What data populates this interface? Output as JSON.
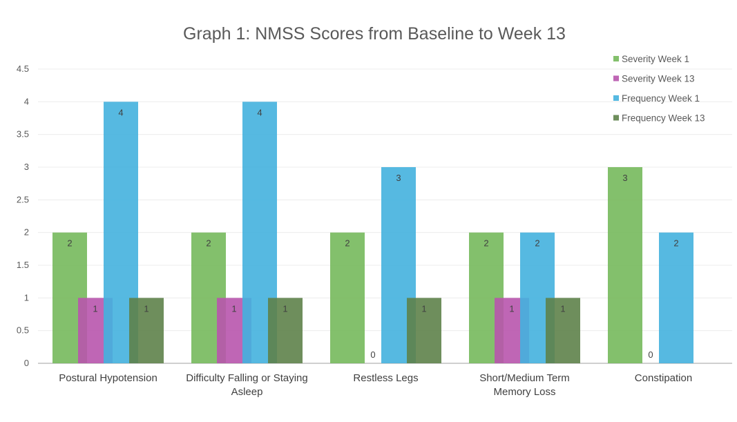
{
  "chart_data": {
    "type": "bar",
    "title": "Graph 1: NMSS Scores from Baseline to Week 13",
    "xlabel": "",
    "ylabel": "",
    "ylim": [
      0,
      4.5
    ],
    "yticks": [
      "0",
      "0.5",
      "1",
      "1.5",
      "2",
      "2.5",
      "3",
      "3.5",
      "4",
      "4.5"
    ],
    "grid": true,
    "legend": "top-right",
    "categories": [
      [
        "Postural Hypotension"
      ],
      [
        "Difficulty Falling or Staying",
        "Asleep"
      ],
      [
        "Restless Legs"
      ],
      [
        "Short/Medium Term",
        "Memory Loss"
      ],
      [
        "Constipation"
      ]
    ],
    "series": [
      {
        "name": "Severity Week 1",
        "color": "#76b95c",
        "values": [
          2,
          2,
          2,
          2,
          3
        ]
      },
      {
        "name": "Severity Week 13",
        "color": "#b855ad",
        "values": [
          1,
          1,
          0,
          1,
          0
        ]
      },
      {
        "name": "Frequency Week 1",
        "color": "#44b1de",
        "values": [
          4,
          4,
          3,
          2,
          2
        ]
      },
      {
        "name": "Frequency Week 13",
        "color": "#5e824a",
        "values": [
          1,
          1,
          1,
          1,
          null
        ]
      }
    ]
  }
}
